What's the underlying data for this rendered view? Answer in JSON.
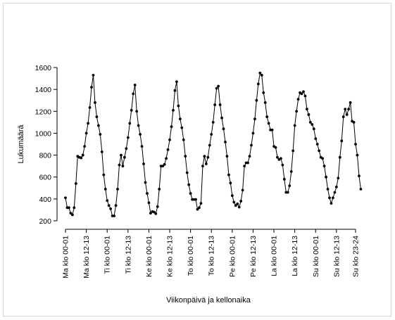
{
  "chart_data": {
    "type": "line",
    "title": "",
    "xlabel": "Viikonpäivä ja kellonaika",
    "ylabel": "Lukumäärä",
    "ylim": [
      200,
      1600
    ],
    "yticks": [
      200,
      400,
      600,
      800,
      1000,
      1200,
      1400,
      1600
    ],
    "xlim": [
      1,
      168
    ],
    "xticks": [
      {
        "x": 1,
        "label": "Ma klo 00-01"
      },
      {
        "x": 13,
        "label": "Ma klo 12-13"
      },
      {
        "x": 25,
        "label": "Ti klo 00-01"
      },
      {
        "x": 37,
        "label": "Ti klo 12-13"
      },
      {
        "x": 49,
        "label": "Ke klo 00-01"
      },
      {
        "x": 61,
        "label": "Ke klo 12-13"
      },
      {
        "x": 73,
        "label": "To klo 00-01"
      },
      {
        "x": 85,
        "label": "To klo 12-13"
      },
      {
        "x": 97,
        "label": "Pe klo 00-01"
      },
      {
        "x": 109,
        "label": "Pe klo 12-13"
      },
      {
        "x": 121,
        "label": "La klo 00-01"
      },
      {
        "x": 133,
        "label": "La klo 12-13"
      },
      {
        "x": 145,
        "label": "Su klo 00-01"
      },
      {
        "x": 157,
        "label": "Su klo 12-13"
      },
      {
        "x": 168,
        "label": "Su klo 23-24"
      }
    ],
    "grid": false,
    "legend": "none",
    "marker": "circle",
    "color": "#000000",
    "series": [
      {
        "values": [
          410,
          320,
          320,
          270,
          255,
          320,
          540,
          790,
          780,
          775,
          800,
          880,
          1000,
          1090,
          1235,
          1420,
          1530,
          1280,
          1150,
          1070,
          990,
          830,
          620,
          490,
          385,
          340,
          310,
          245,
          245,
          340,
          490,
          710,
          800,
          700,
          780,
          860,
          960,
          1090,
          1210,
          1360,
          1440,
          1200,
          1070,
          990,
          880,
          720,
          550,
          450,
          365,
          270,
          285,
          280,
          265,
          330,
          490,
          700,
          700,
          715,
          770,
          850,
          940,
          1060,
          1210,
          1390,
          1470,
          1250,
          1130,
          1050,
          940,
          790,
          640,
          530,
          450,
          395,
          395,
          395,
          305,
          320,
          360,
          700,
          790,
          720,
          780,
          890,
          990,
          1100,
          1260,
          1410,
          1430,
          1260,
          1140,
          1040,
          920,
          790,
          620,
          545,
          430,
          370,
          340,
          355,
          325,
          380,
          480,
          700,
          730,
          730,
          790,
          890,
          1000,
          1130,
          1300,
          1450,
          1550,
          1530,
          1370,
          1280,
          1150,
          1090,
          1030,
          1030,
          880,
          870,
          780,
          760,
          770,
          710,
          580,
          460,
          460,
          520,
          650,
          840,
          1070,
          1200,
          1310,
          1370,
          1360,
          1380,
          1340,
          1220,
          1170,
          1100,
          1080,
          1040,
          950,
          900,
          840,
          780,
          770,
          700,
          600,
          490,
          410,
          360,
          410,
          460,
          510,
          590,
          780,
          930,
          1150,
          1220,
          1170,
          1220,
          1280,
          1110,
          1100,
          900,
          800,
          610,
          490
        ]
      }
    ]
  }
}
